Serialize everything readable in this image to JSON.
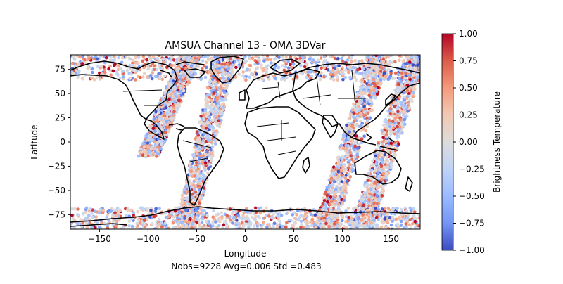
{
  "chart_data": {
    "type": "scatter",
    "title": "AMSUA Channel 13 - OMA 3DVar",
    "xlabel": "Longitude",
    "ylabel": "Latitude",
    "footer": "Nobs=9228 Avg=0.006 Std =0.483",
    "xlim": [
      -180,
      180
    ],
    "ylim": [
      -90,
      90
    ],
    "xticks": [
      -150,
      -100,
      -50,
      0,
      50,
      100,
      150
    ],
    "yticks": [
      -75,
      -50,
      -25,
      0,
      25,
      50,
      75
    ],
    "colorbar": {
      "label": "Brightness Temperature",
      "colormap": "coolwarm",
      "range": [
        -1.0,
        1.0
      ],
      "ticks": [
        1.0,
        0.75,
        0.5,
        0.25,
        0.0,
        -0.25,
        -0.5,
        -0.75,
        -1.0
      ],
      "tick_labels": [
        "1.00",
        "0.75",
        "0.50",
        "0.25",
        "0.00",
        "−0.25",
        "−0.50",
        "−0.75",
        "−1.00"
      ]
    },
    "swaths": [
      {
        "lon_start": -100,
        "lat_start": -15,
        "lon_end": -57,
        "lat_end": 90,
        "width_deg": 22
      },
      {
        "lon_start": -62,
        "lat_start": -90,
        "lon_end": -20,
        "lat_end": 90,
        "width_deg": 22
      },
      {
        "lon_start": 82,
        "lat_start": -88,
        "lon_end": 138,
        "lat_end": 90,
        "width_deg": 22
      },
      {
        "lon_start": 120,
        "lat_start": -88,
        "lon_end": 176,
        "lat_end": 90,
        "width_deg": 22
      }
    ],
    "polar_band_north_lat": 64,
    "polar_band_south_lat": -68,
    "nobs": 9228,
    "avg": 0.006,
    "std": 0.483
  }
}
